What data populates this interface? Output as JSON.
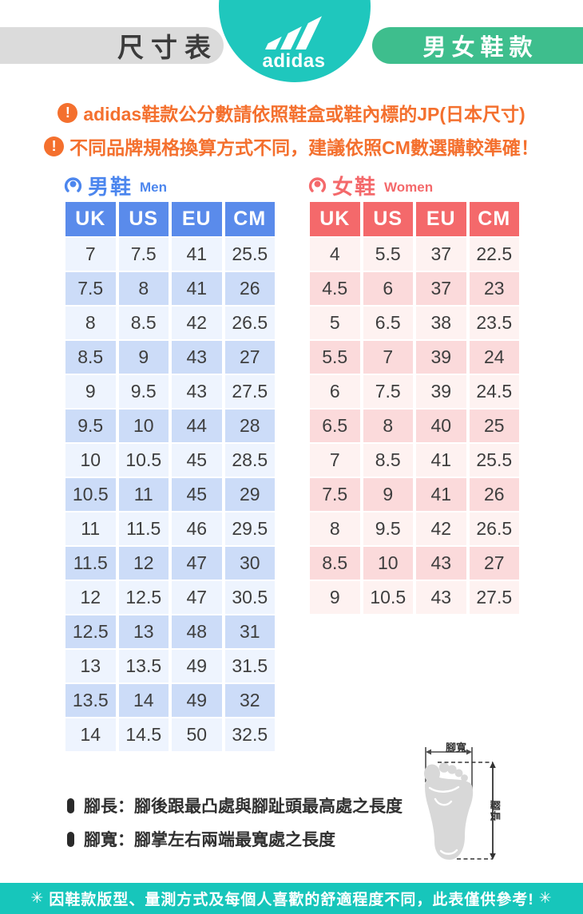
{
  "header": {
    "size_chart_label": "尺寸表",
    "brand_wordmark": "adidas",
    "category_label": "男女鞋款"
  },
  "notices": [
    {
      "icon": "!",
      "text": "adidas鞋款公分數請依照鞋盒或鞋內標的JP(日本尺寸)"
    },
    {
      "icon": "!",
      "text": "不同品牌規格換算方式不同，建議依照CM數選購較準確！"
    }
  ],
  "tables": {
    "men": {
      "title_zh": "男鞋",
      "title_en": "Men",
      "columns": [
        "UK",
        "US",
        "EU",
        "CM"
      ],
      "rows": [
        [
          "7",
          "7.5",
          "41",
          "25.5"
        ],
        [
          "7.5",
          "8",
          "41",
          "26"
        ],
        [
          "8",
          "8.5",
          "42",
          "26.5"
        ],
        [
          "8.5",
          "9",
          "43",
          "27"
        ],
        [
          "9",
          "9.5",
          "43",
          "27.5"
        ],
        [
          "9.5",
          "10",
          "44",
          "28"
        ],
        [
          "10",
          "10.5",
          "45",
          "28.5"
        ],
        [
          "10.5",
          "11",
          "45",
          "29"
        ],
        [
          "11",
          "11.5",
          "46",
          "29.5"
        ],
        [
          "11.5",
          "12",
          "47",
          "30"
        ],
        [
          "12",
          "12.5",
          "47",
          "30.5"
        ],
        [
          "12.5",
          "13",
          "48",
          "31"
        ],
        [
          "13",
          "13.5",
          "49",
          "31.5"
        ],
        [
          "13.5",
          "14",
          "49",
          "32"
        ],
        [
          "14",
          "14.5",
          "50",
          "32.5"
        ]
      ]
    },
    "women": {
      "title_zh": "女鞋",
      "title_en": "Women",
      "columns": [
        "UK",
        "US",
        "EU",
        "CM"
      ],
      "rows": [
        [
          "4",
          "5.5",
          "37",
          "22.5"
        ],
        [
          "4.5",
          "6",
          "37",
          "23"
        ],
        [
          "5",
          "6.5",
          "38",
          "23.5"
        ],
        [
          "5.5",
          "7",
          "39",
          "24"
        ],
        [
          "6",
          "7.5",
          "39",
          "24.5"
        ],
        [
          "6.5",
          "8",
          "40",
          "25"
        ],
        [
          "7",
          "8.5",
          "41",
          "25.5"
        ],
        [
          "7.5",
          "9",
          "41",
          "26"
        ],
        [
          "8",
          "9.5",
          "42",
          "26.5"
        ],
        [
          "8.5",
          "10",
          "43",
          "27"
        ],
        [
          "9",
          "10.5",
          "43",
          "27.5"
        ]
      ]
    }
  },
  "foot_diagram": {
    "width_label": "腳寬",
    "length_label": "腳長"
  },
  "legend": [
    {
      "text": "腳長：腳後跟最凸處與腳趾頭最高處之長度"
    },
    {
      "text": "腳寬：腳掌左右兩端最寬處之長度"
    }
  ],
  "footer": {
    "star": "✳",
    "text": "因鞋款版型、量測方式及每個人喜歡的舒適程度不同，此表僅供參考!"
  },
  "colors": {
    "teal": "#1fc7bd",
    "green_pill": "#3ebe8d",
    "gray_pill": "#dbdbdb",
    "warning_orange": "#f4702e",
    "men_header_blue": "#5a8beb",
    "men_row_light": "#eef4fe",
    "men_row_alt": "#ccdcf8",
    "women_header_red": "#f4696b",
    "women_row_light": "#fef2f1",
    "women_row_alt": "#fbdadb"
  }
}
